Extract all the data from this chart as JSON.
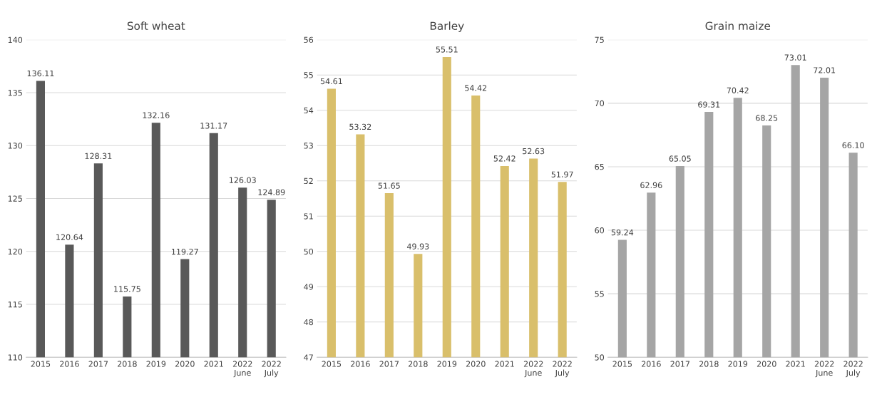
{
  "chart_data": [
    {
      "type": "bar",
      "title": "Soft wheat",
      "categories": [
        "2015",
        "2016",
        "2017",
        "2018",
        "2019",
        "2020",
        "2021",
        "2022\nJune",
        "2022\nJuly"
      ],
      "values": [
        136.11,
        120.64,
        128.31,
        115.75,
        132.16,
        119.27,
        131.17,
        126.03,
        124.89
      ],
      "value_labels": [
        "136.11",
        "120.64",
        "128.31",
        "115.75",
        "132.16",
        "119.27",
        "131.17",
        "126.03",
        "124.89"
      ],
      "color": "#595959",
      "ylim": [
        110,
        140
      ],
      "yticks": [
        110,
        115,
        120,
        125,
        130,
        135,
        140
      ],
      "grid": "y",
      "legend": false
    },
    {
      "type": "bar",
      "title": "Barley",
      "categories": [
        "2015",
        "2016",
        "2017",
        "2018",
        "2019",
        "2020",
        "2021",
        "2022\nJune",
        "2022\nJuly"
      ],
      "values": [
        54.61,
        53.32,
        51.65,
        49.93,
        55.51,
        54.42,
        52.42,
        52.63,
        51.97
      ],
      "value_labels": [
        "54.61",
        "53.32",
        "51.65",
        "49.93",
        "55.51",
        "54.42",
        "52.42",
        "52.63",
        "51.97"
      ],
      "color": "#d9bf6b",
      "ylim": [
        47,
        56
      ],
      "yticks": [
        47,
        48,
        49,
        50,
        51,
        52,
        53,
        54,
        55,
        56
      ],
      "grid": "y",
      "legend": false
    },
    {
      "type": "bar",
      "title": "Grain maize",
      "categories": [
        "2015",
        "2016",
        "2017",
        "2018",
        "2019",
        "2020",
        "2021",
        "2022\nJune",
        "2022\nJuly"
      ],
      "values": [
        59.24,
        62.96,
        65.05,
        69.31,
        70.42,
        68.25,
        73.01,
        72.01,
        66.1
      ],
      "value_labels": [
        "59.24",
        "62.96",
        "65.05",
        "69.31",
        "70.42",
        "68.25",
        "73.01",
        "72.01",
        "66.10"
      ],
      "color": "#a5a5a5",
      "ylim": [
        50,
        75
      ],
      "yticks": [
        50,
        55,
        60,
        65,
        70,
        75
      ],
      "grid": "y",
      "legend": false
    }
  ]
}
